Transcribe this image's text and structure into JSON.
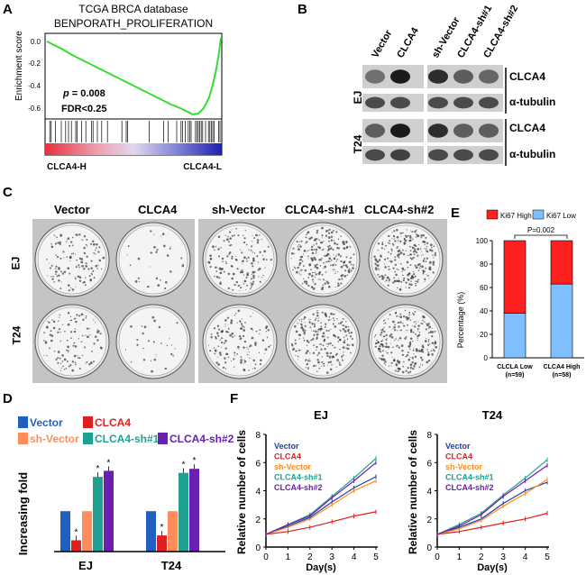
{
  "panel_labels": {
    "a": "A",
    "b": "B",
    "c": "C",
    "d": "D",
    "e": "E",
    "f": "F"
  },
  "gsea": {
    "title_line1": "TCGA BRCA database",
    "title_line2": "BENPORATH_PROLIFERATION",
    "ylabel": "Enrichment score",
    "yticks": [
      "0.0",
      "-0.2",
      "-0.4",
      "-0.6"
    ],
    "pvalue_prefix": "p",
    "pvalue_rest": " = 0.008",
    "fdr": "FDR<0.25",
    "left_label": "CLCA4-H",
    "right_label": "CLCA4-L",
    "colors": {
      "curve": "#33dd33"
    }
  },
  "blot": {
    "lanes_left": [
      "Vector",
      "CLCA4"
    ],
    "lanes_right": [
      "sh-Vector",
      "CLCA4-sh#1",
      "CLCA4-sh#2"
    ],
    "rows": [
      "CLCA4",
      "α-tubulin",
      "CLCA4",
      "α-tubulin"
    ],
    "cell_lines": [
      "EJ",
      "T24"
    ]
  },
  "colony": {
    "columns": [
      "Vector",
      "CLCA4",
      "sh-Vector",
      "CLCA4-sh#1",
      "CLCA4-sh#2"
    ],
    "rows": [
      "EJ",
      "T24"
    ]
  },
  "ki67": {
    "legend_high": "Ki67 High",
    "legend_low": "Ki67 Low",
    "pvalue": "P=0.002",
    "ylabel": "Percentage (%)",
    "colors": {
      "high": "#ff2020",
      "low": "#7fbfff"
    },
    "chart_data": {
      "type": "bar",
      "stacked": true,
      "categories": [
        "CLCLA Low",
        "CLCA4 High"
      ],
      "category_n": [
        "(n=59)",
        "(n=58)"
      ],
      "series": [
        {
          "name": "Ki67 Low",
          "values": [
            38,
            63
          ]
        },
        {
          "name": "Ki67 High",
          "values": [
            62,
            37
          ]
        }
      ],
      "ylim": [
        0,
        100
      ],
      "yticks": [
        "0",
        "20",
        "40",
        "60",
        "80",
        "100"
      ]
    }
  },
  "fold": {
    "ylabel": "Increasing fold",
    "legend": [
      "Vector",
      "CLCA4",
      "sh-Vector",
      "CLCA4-sh#1",
      "CLCA4-sh#2"
    ],
    "star": "*",
    "colors": {
      "Vector": "#1f5fbf",
      "CLCA4": "#e02020",
      "sh-Vector": "#ff8c5a",
      "CLCA4-sh#1": "#20a090",
      "CLCA4-sh#2": "#6a1fb0"
    },
    "chart_data": {
      "type": "bar",
      "categories": [
        "EJ",
        "T24"
      ],
      "series": [
        {
          "name": "Vector",
          "values": [
            1.0,
            1.0
          ]
        },
        {
          "name": "CLCA4",
          "values": [
            0.28,
            0.4
          ]
        },
        {
          "name": "sh-Vector",
          "values": [
            1.0,
            1.0
          ]
        },
        {
          "name": "CLCA4-sh#1",
          "values": [
            1.85,
            1.95
          ]
        },
        {
          "name": "CLCA4-sh#2",
          "values": [
            2.0,
            2.05
          ]
        }
      ],
      "ylim": [
        0,
        2.5
      ]
    }
  },
  "growth": {
    "ylabel": "Relative number of cells",
    "xlabel": "Day(s)",
    "xticks": [
      "0",
      "1",
      "2",
      "3",
      "4",
      "5"
    ],
    "yticks": [
      "0",
      "2",
      "4",
      "6",
      "8"
    ],
    "legend": [
      "Vector",
      "CLCA4",
      "sh-Vector",
      "CLCA4-sh#1",
      "CLCA4-sh#2"
    ],
    "colors": {
      "Vector": "#1f3fa0",
      "CLCA4": "#e02020",
      "sh-Vector": "#ff8c20",
      "CLCA4-sh#1": "#20a090",
      "CLCA4-sh#2": "#6a1fb0"
    },
    "chart_data": [
      {
        "type": "line",
        "title": "EJ",
        "x": [
          0,
          1,
          2,
          3,
          4,
          5
        ],
        "series": [
          {
            "name": "Vector",
            "values": [
              0.9,
              1.5,
              2.1,
              3.2,
              4.2,
              5.0
            ]
          },
          {
            "name": "CLCA4",
            "values": [
              0.9,
              1.1,
              1.4,
              1.8,
              2.2,
              2.5
            ]
          },
          {
            "name": "sh-Vector",
            "values": [
              0.9,
              1.4,
              2.0,
              3.0,
              4.0,
              4.7
            ]
          },
          {
            "name": "CLCA4-sh#1",
            "values": [
              0.9,
              1.6,
              2.3,
              3.6,
              4.9,
              6.3
            ]
          },
          {
            "name": "CLCA4-sh#2",
            "values": [
              0.9,
              1.6,
              2.2,
              3.5,
              4.7,
              6.0
            ]
          }
        ],
        "xlim": [
          0,
          5
        ],
        "ylim": [
          0,
          8
        ]
      },
      {
        "type": "line",
        "title": "T24",
        "x": [
          0,
          1,
          2,
          3,
          4,
          5
        ],
        "series": [
          {
            "name": "Vector",
            "values": [
              0.9,
              1.4,
              2.0,
              3.1,
              4.0,
              4.6
            ]
          },
          {
            "name": "CLCA4",
            "values": [
              0.9,
              1.1,
              1.4,
              1.7,
              2.0,
              2.4
            ]
          },
          {
            "name": "sh-Vector",
            "values": [
              0.9,
              1.3,
              1.9,
              2.9,
              3.8,
              4.8
            ]
          },
          {
            "name": "CLCA4-sh#1",
            "values": [
              0.9,
              1.6,
              2.4,
              3.7,
              4.9,
              6.2
            ]
          },
          {
            "name": "CLCA4-sh#2",
            "values": [
              0.9,
              1.5,
              2.3,
              3.6,
              4.7,
              5.8
            ]
          }
        ],
        "xlim": [
          0,
          5
        ],
        "ylim": [
          0,
          8
        ]
      }
    ]
  }
}
